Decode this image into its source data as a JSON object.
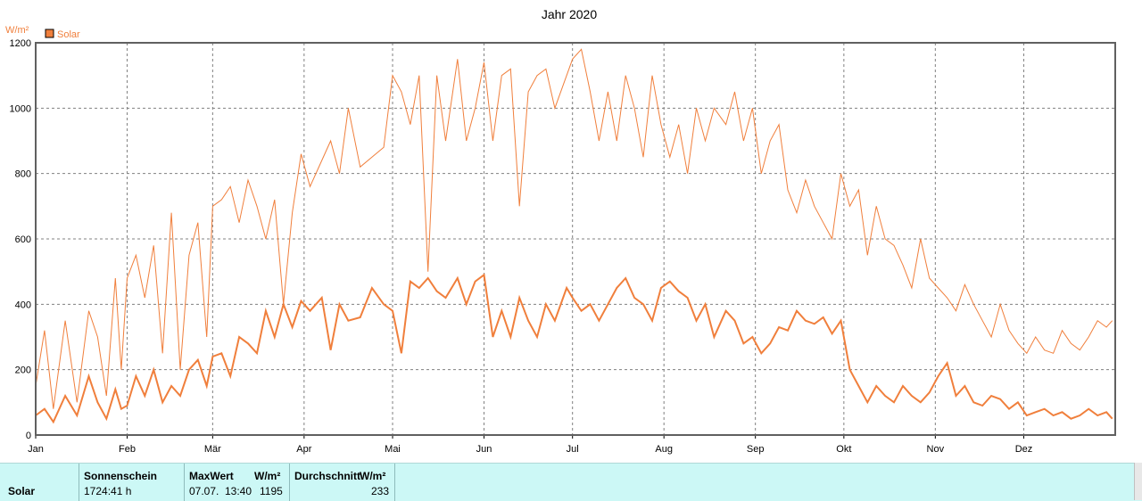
{
  "chart_data": {
    "type": "line",
    "title": "Jahr 2020",
    "ylabel": "W/m²",
    "legend": [
      {
        "name": "Solar",
        "color": "#f07f3c"
      }
    ],
    "legend_position": "top-left",
    "ylim": [
      0,
      1200
    ],
    "yticks": [
      0,
      200,
      400,
      600,
      800,
      1000,
      1200
    ],
    "x_range_days": [
      0,
      366
    ],
    "xticks": [
      {
        "label": "Jan",
        "day": 0
      },
      {
        "label": "Feb",
        "day": 31
      },
      {
        "label": "Mär",
        "day": 60
      },
      {
        "label": "Apr",
        "day": 91
      },
      {
        "label": "Mai",
        "day": 121
      },
      {
        "label": "Jun",
        "day": 152
      },
      {
        "label": "Jul",
        "day": 182
      },
      {
        "label": "Aug",
        "day": 213
      },
      {
        "label": "Sep",
        "day": 244
      },
      {
        "label": "Okt",
        "day": 274
      },
      {
        "label": "Nov",
        "day": 305
      },
      {
        "label": "Dez",
        "day": 335
      }
    ],
    "grid": true,
    "series": [
      {
        "name": "Solar",
        "color": "#f07f3c",
        "x": [
          0,
          3,
          6,
          10,
          14,
          18,
          21,
          24,
          27,
          29,
          31,
          34,
          37,
          40,
          43,
          46,
          49,
          52,
          55,
          58,
          60,
          63,
          66,
          69,
          72,
          75,
          78,
          81,
          84,
          87,
          90,
          93,
          97,
          100,
          103,
          106,
          110,
          114,
          118,
          121,
          124,
          127,
          130,
          133,
          136,
          139,
          143,
          146,
          149,
          152,
          155,
          158,
          161,
          164,
          167,
          170,
          173,
          176,
          180,
          182,
          185,
          188,
          191,
          194,
          197,
          200,
          203,
          206,
          209,
          212,
          215,
          218,
          221,
          224,
          227,
          230,
          234,
          237,
          240,
          243,
          246,
          249,
          252,
          255,
          258,
          261,
          264,
          267,
          270,
          273,
          276,
          279,
          282,
          285,
          288,
          291,
          294,
          297,
          300,
          303,
          306,
          309,
          312,
          315,
          318,
          321,
          324,
          327,
          330,
          333,
          336,
          339,
          342,
          345,
          348,
          351,
          354,
          357,
          360,
          363,
          365
        ],
        "values": [
          150,
          320,
          80,
          350,
          100,
          380,
          300,
          120,
          480,
          200,
          480,
          550,
          420,
          580,
          250,
          680,
          200,
          550,
          650,
          300,
          700,
          720,
          760,
          650,
          780,
          700,
          600,
          720,
          400,
          680,
          860,
          760,
          840,
          900,
          800,
          1000,
          820,
          850,
          880,
          1100,
          1050,
          950,
          1100,
          500,
          1100,
          900,
          1150,
          900,
          1000,
          1140,
          900,
          1100,
          1120,
          700,
          1050,
          1100,
          1120,
          1000,
          1100,
          1150,
          1180,
          1050,
          900,
          1050,
          900,
          1100,
          1000,
          850,
          1100,
          950,
          850,
          950,
          800,
          1000,
          900,
          1000,
          950,
          1050,
          900,
          1000,
          800,
          900,
          950,
          750,
          680,
          780,
          700,
          650,
          600,
          800,
          700,
          750,
          550,
          700,
          600,
          580,
          520,
          450,
          600,
          480,
          450,
          420,
          380,
          460,
          400,
          350,
          300,
          400,
          320,
          280,
          250,
          300,
          260,
          250,
          320,
          280,
          260,
          300,
          350,
          330,
          350
        ]
      }
    ],
    "series_overlay": {
      "x": [
        0,
        3,
        6,
        10,
        14,
        18,
        21,
        24,
        27,
        29,
        31,
        34,
        37,
        40,
        43,
        46,
        49,
        52,
        55,
        58,
        60,
        63,
        66,
        69,
        72,
        75,
        78,
        81,
        84,
        87,
        90,
        93,
        97,
        100,
        103,
        106,
        110,
        114,
        118,
        121,
        124,
        127,
        130,
        133,
        136,
        139,
        143,
        146,
        149,
        152,
        155,
        158,
        161,
        164,
        167,
        170,
        173,
        176,
        180,
        182,
        185,
        188,
        191,
        194,
        197,
        200,
        203,
        206,
        209,
        212,
        215,
        218,
        221,
        224,
        227,
        230,
        234,
        237,
        240,
        243,
        246,
        249,
        252,
        255,
        258,
        261,
        264,
        267,
        270,
        273,
        276,
        279,
        282,
        285,
        288,
        291,
        294,
        297,
        300,
        303,
        306,
        309,
        312,
        315,
        318,
        321,
        324,
        327,
        330,
        333,
        336,
        339,
        342,
        345,
        348,
        351,
        354,
        357,
        360,
        363,
        365
      ],
      "values": [
        60,
        80,
        40,
        120,
        60,
        180,
        100,
        50,
        140,
        80,
        90,
        180,
        120,
        200,
        100,
        150,
        120,
        200,
        230,
        150,
        240,
        250,
        180,
        300,
        280,
        250,
        380,
        300,
        400,
        330,
        410,
        380,
        420,
        260,
        400,
        350,
        360,
        450,
        400,
        380,
        250,
        470,
        450,
        480,
        440,
        420,
        480,
        400,
        470,
        490,
        300,
        380,
        300,
        420,
        350,
        300,
        400,
        350,
        450,
        420,
        380,
        400,
        350,
        400,
        450,
        480,
        420,
        400,
        350,
        450,
        470,
        440,
        420,
        350,
        400,
        300,
        380,
        350,
        280,
        300,
        250,
        280,
        330,
        320,
        380,
        350,
        340,
        360,
        310,
        350,
        200,
        150,
        100,
        150,
        120,
        100,
        150,
        120,
        100,
        130,
        180,
        220,
        120,
        150,
        100,
        90,
        120,
        110,
        80,
        100,
        60,
        70,
        80,
        60,
        70,
        50,
        60,
        80,
        60,
        70,
        50
      ],
      "color": "#f07f3c"
    }
  },
  "stats": {
    "row_label": "Solar",
    "col1_header": "Sonnenschein",
    "col1_value": "1724:41 h",
    "col2_header": "MaxWert",
    "col2_unit": "W/m²",
    "col2_date": "07.07.",
    "col2_time": "13:40",
    "col2_value": "1195",
    "col3_header": "Durchschnitt",
    "col3_unit": "W/m²",
    "col3_value": "233"
  }
}
